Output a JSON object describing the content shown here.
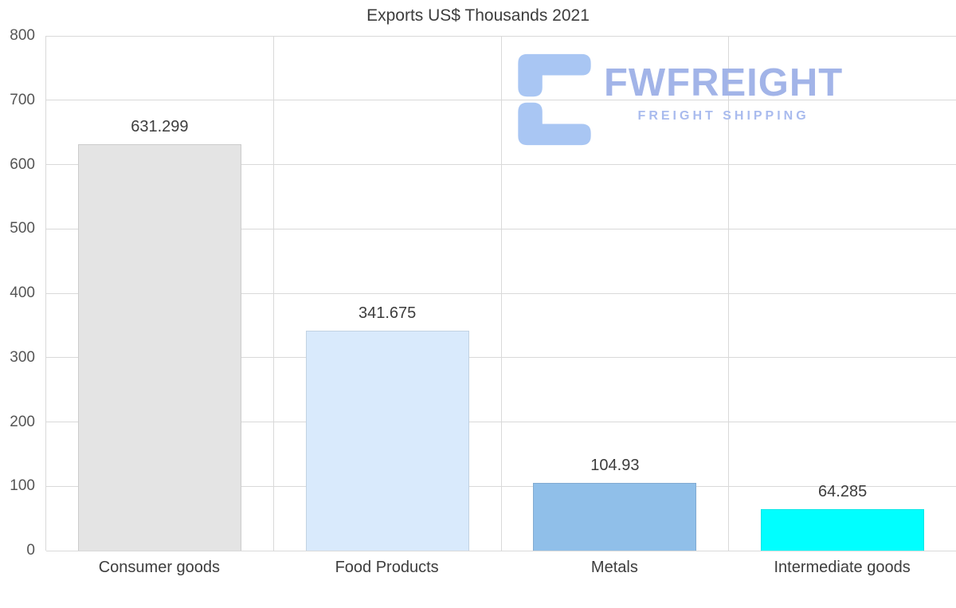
{
  "title": "Exports US$ Thousands 2021",
  "watermark": {
    "brand": "FWFREIGHT",
    "tagline": "FREIGHT SHIPPING",
    "icon": "fwfreight-logo-icon",
    "icon_color": "#a9c6f3",
    "brand_color": "#a2b4e8",
    "tagline_color": "#a9bbee"
  },
  "chart_data": {
    "type": "bar",
    "title": "Exports US$ Thousands 2021",
    "categories": [
      "Consumer goods",
      "Food Products",
      "Metals",
      "Intermediate goods"
    ],
    "values": [
      631.299,
      341.675,
      104.93,
      64.285
    ],
    "value_labels": [
      "631.299",
      "341.675",
      "104.93",
      "64.285"
    ],
    "bar_colors": [
      "#e4e4e4",
      "#d9eafc",
      "#90bfe9",
      "#00ffff"
    ],
    "xlabel": "",
    "ylabel": "",
    "ylim": [
      0,
      800
    ],
    "yticks": [
      0,
      100,
      200,
      300,
      400,
      500,
      600,
      700,
      800
    ],
    "grid": true,
    "gridline_color": "#d9d9d9",
    "legend": false
  }
}
